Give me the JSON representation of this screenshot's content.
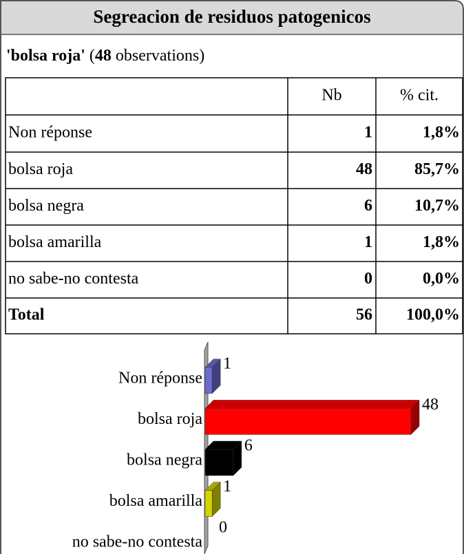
{
  "title": "Segreacion de residuos patogenicos",
  "subtitle": {
    "question": "'bolsa roja'",
    "open": "(",
    "count": 48,
    "unit": "observations)"
  },
  "table": {
    "columns": [
      "Nb",
      "% cit."
    ],
    "rows": [
      [
        "Non réponse",
        1,
        "1,8%"
      ],
      [
        "bolsa roja",
        48,
        "85,7%"
      ],
      [
        "bolsa negra",
        6,
        "10,7%"
      ],
      [
        "bolsa amarilla",
        1,
        "1,8%"
      ],
      [
        "no sabe-no contesta",
        0,
        "0,0%"
      ]
    ],
    "total": [
      "Total",
      56,
      "100,0%"
    ]
  },
  "chart_data": {
    "type": "bar",
    "orientation": "horizontal",
    "categories": [
      "Non réponse",
      "bolsa roja",
      "bolsa negra",
      "bolsa amarilla",
      "no sabe-no contesta"
    ],
    "values": [
      1,
      48,
      6,
      1,
      0
    ],
    "colors": [
      "#6b6bd0",
      "#ff0000",
      "#000000",
      "#d4d400",
      "#808080"
    ],
    "xlim": [
      0,
      48
    ]
  }
}
